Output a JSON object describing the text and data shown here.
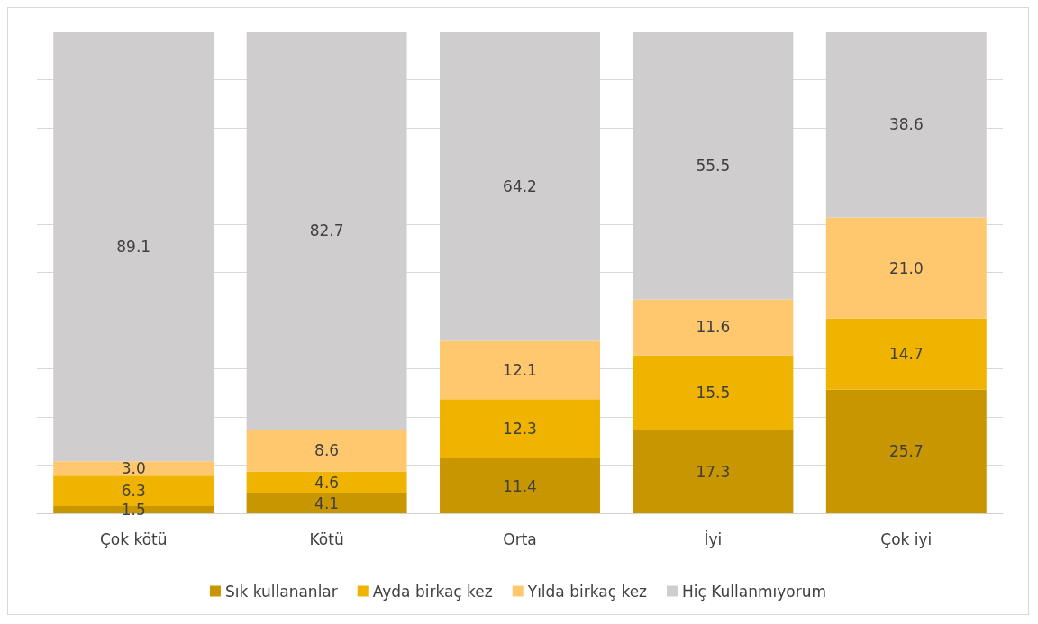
{
  "chart_data": {
    "type": "bar",
    "stacked": true,
    "categories": [
      "Çok kötü",
      "Kötü",
      "Orta",
      "İyi",
      "Çok iyi"
    ],
    "series": [
      {
        "name": "Sık kullananlar",
        "color": "#c89600",
        "values": [
          1.5,
          4.1,
          11.4,
          17.3,
          25.7
        ],
        "value_labels": [
          "1.5",
          "4.1",
          "11.4",
          "17.3",
          "25.7"
        ]
      },
      {
        "name": "Ayda birkaç kez",
        "color": "#f0b400",
        "values": [
          6.3,
          4.6,
          12.3,
          15.5,
          14.7
        ],
        "value_labels": [
          "6.3",
          "4.6",
          "12.3",
          "15.5",
          "14.7"
        ]
      },
      {
        "name": "Yılda birkaç kez",
        "color": "#ffc86e",
        "values": [
          3.0,
          8.6,
          12.1,
          11.6,
          21.0
        ],
        "value_labels": [
          "3.0",
          "8.6",
          "12.1",
          "11.6",
          "21.0"
        ]
      },
      {
        "name": "Hiç Kullanmıyorum",
        "color": "#d0cdcf",
        "values": [
          89.1,
          82.7,
          64.2,
          55.5,
          38.6
        ],
        "value_labels": [
          "89.1",
          "82.7",
          "64.2",
          "55.5",
          "38.6"
        ]
      }
    ],
    "ylim": [
      0,
      100
    ],
    "yticks": [
      {
        "value": 0,
        "label": null
      },
      {
        "value": 10,
        "label": null
      },
      {
        "value": 20,
        "label": null
      },
      {
        "value": 30,
        "label": null
      },
      {
        "value": 40,
        "label": null
      },
      {
        "value": 50,
        "label": null
      },
      {
        "value": 60,
        "label": null
      },
      {
        "value": 70,
        "label": null
      },
      {
        "value": 80,
        "label": null
      },
      {
        "value": 90,
        "label": null
      },
      {
        "value": 100,
        "label": null
      }
    ],
    "tick_labels": "x",
    "grid": "y",
    "legend": "bottom"
  }
}
